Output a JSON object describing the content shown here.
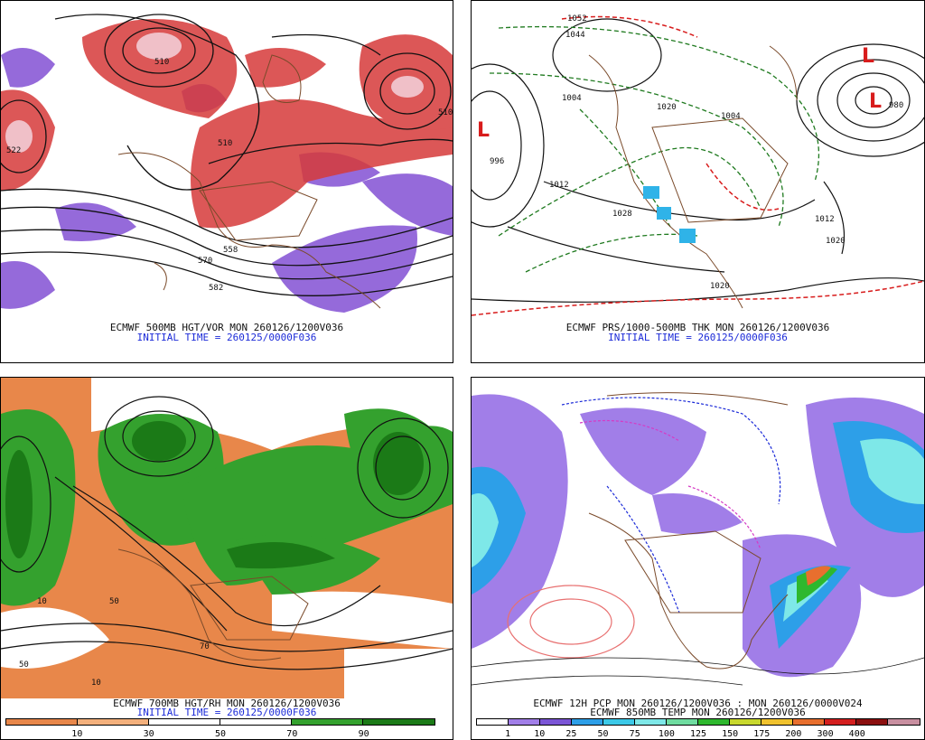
{
  "panels": {
    "p1": {
      "caption1": "ECMWF 500MB HGT/VOR MON 260126/1200V036",
      "caption2": "INITIAL TIME = 260125/0000F036",
      "contour_labels": [
        "510",
        "522",
        "510",
        "558",
        "570",
        "582",
        "510"
      ]
    },
    "p2": {
      "caption1": "ECMWF PRS/1000-500MB THK MON 260126/1200V036",
      "caption2": "INITIAL TIME = 260125/0000F036",
      "contour_labels": [
        "1052",
        "1044",
        "1004",
        "996",
        "1012",
        "1020",
        "1028",
        "1012",
        "1020",
        "1004",
        "980",
        "1020"
      ]
    },
    "p3": {
      "caption1": "ECMWF 700MB HGT/RH MON 260126/1200V036",
      "caption2": "INITIAL TIME = 260125/0000F036",
      "colorbar": {
        "colors": [
          "#e8874a",
          "#f3b07c",
          "#ffffff",
          "#ffffff",
          "#34a12e",
          "#1b7a17"
        ],
        "ticks": [
          "10",
          "30",
          "50",
          "70",
          "90"
        ]
      }
    },
    "p4": {
      "caption1": "ECMWF 12H PCP MON 260126/1200V036 : MON 260126/0000V024",
      "caption2": "ECMWF 850MB TEMP MON 260126/1200V036",
      "colorbar": {
        "colors": [
          "#ffffff",
          "#a17ee8",
          "#7b55d6",
          "#2d9fe8",
          "#3cc9e8",
          "#7ee8e8",
          "#6fdca0",
          "#2eb82e",
          "#c8d82e",
          "#f0c22e",
          "#e86f2e",
          "#d41f1f",
          "#8b0f0f",
          "#c88fa0"
        ],
        "ticks": [
          "1",
          "10",
          "25",
          "50",
          "75",
          "100",
          "125",
          "150",
          "175",
          "200",
          "300",
          "400"
        ]
      }
    }
  }
}
